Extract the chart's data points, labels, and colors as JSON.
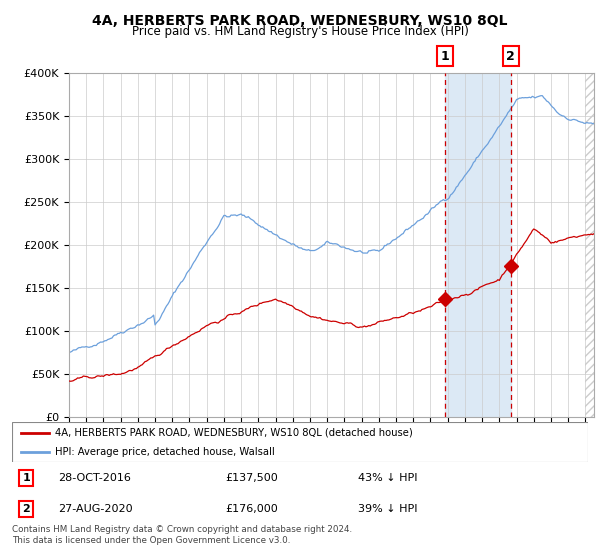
{
  "title1": "4A, HERBERTS PARK ROAD, WEDNESBURY, WS10 8QL",
  "title2": "Price paid vs. HM Land Registry's House Price Index (HPI)",
  "legend_red": "4A, HERBERTS PARK ROAD, WEDNESBURY, WS10 8QL (detached house)",
  "legend_blue": "HPI: Average price, detached house, Walsall",
  "annotation1_label": "1",
  "annotation1_date": "28-OCT-2016",
  "annotation1_price": "£137,500",
  "annotation1_pct": "43% ↓ HPI",
  "annotation2_label": "2",
  "annotation2_date": "27-AUG-2020",
  "annotation2_price": "£176,000",
  "annotation2_pct": "39% ↓ HPI",
  "footnote": "Contains HM Land Registry data © Crown copyright and database right 2024.\nThis data is licensed under the Open Government Licence v3.0.",
  "sale1_year": 2016.83,
  "sale1_value": 137500,
  "sale2_year": 2020.66,
  "sale2_value": 176000,
  "hpi_color": "#6ca0dc",
  "price_color": "#cc0000",
  "shading_color": "#dce9f5",
  "vline_color": "#cc0000",
  "ylim_max": 400000,
  "ylim_min": 0,
  "xlim_min": 1995.0,
  "xlim_max": 2025.5,
  "yticks": [
    0,
    50000,
    100000,
    150000,
    200000,
    250000,
    300000,
    350000,
    400000
  ],
  "ylabels": [
    "£0",
    "£50K",
    "£100K",
    "£150K",
    "£200K",
    "£250K",
    "£300K",
    "£350K",
    "£400K"
  ]
}
